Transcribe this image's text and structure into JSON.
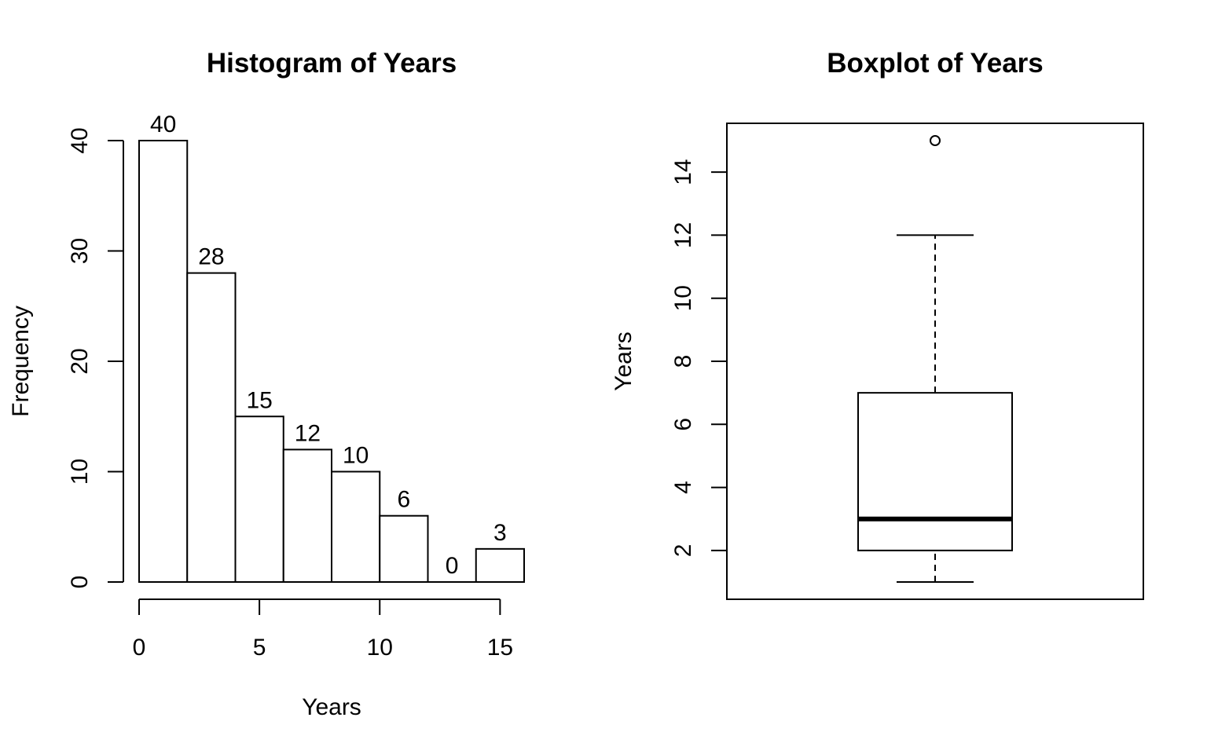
{
  "chart_data": [
    {
      "type": "bar",
      "subtype": "histogram",
      "title": "Histogram of Years",
      "xlabel": "Years",
      "ylabel": "Frequency",
      "bins": [
        [
          0,
          2
        ],
        [
          2,
          4
        ],
        [
          4,
          6
        ],
        [
          6,
          8
        ],
        [
          8,
          10
        ],
        [
          10,
          12
        ],
        [
          12,
          14
        ],
        [
          14,
          16
        ]
      ],
      "values": [
        40,
        28,
        15,
        12,
        10,
        6,
        0,
        3
      ],
      "data_labels": [
        "40",
        "28",
        "15",
        "12",
        "10",
        "6",
        "0",
        "3"
      ],
      "xticks": [
        0,
        5,
        10,
        15
      ],
      "xtick_labels": [
        "0",
        "5",
        "10",
        "15"
      ],
      "yticks": [
        0,
        10,
        20,
        30,
        40
      ],
      "ytick_labels": [
        "0",
        "10",
        "20",
        "30",
        "40"
      ],
      "xlim": [
        0,
        16
      ],
      "ylim": [
        0,
        40
      ],
      "grid": false
    },
    {
      "type": "boxplot",
      "title": "Boxplot of Years",
      "ylabel": "Years",
      "whisker_low": 1,
      "q1": 2,
      "median": 3,
      "q3": 7,
      "whisker_high": 12,
      "outliers": [
        15
      ],
      "yticks": [
        2,
        4,
        6,
        8,
        10,
        12,
        14
      ],
      "ytick_labels": [
        "2",
        "4",
        "6",
        "8",
        "10",
        "12",
        "14"
      ],
      "ylim": [
        1,
        15
      ],
      "grid": false
    }
  ]
}
